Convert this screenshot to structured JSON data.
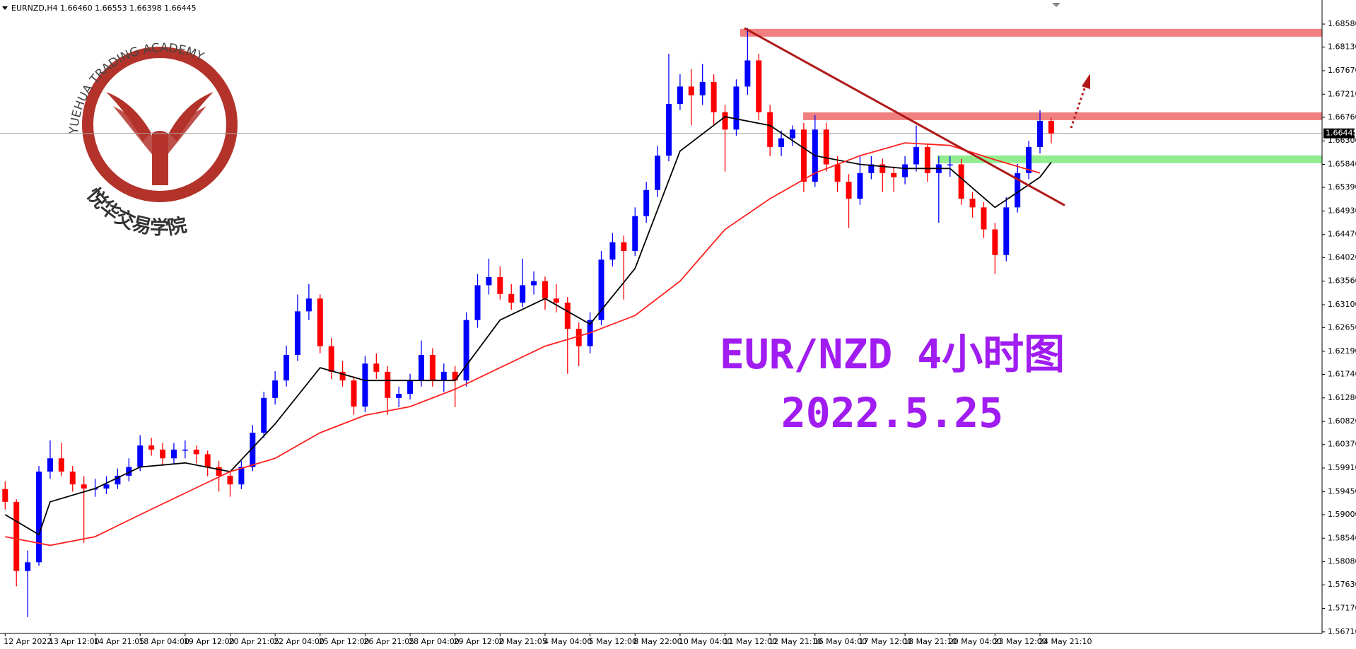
{
  "chart_data": {
    "type": "candlestick",
    "header": "EURNZD,H4  1.66460 1.66553 1.66398 1.66445",
    "title": "EUR/NZD 4小时图",
    "subtitle": "2022.5.25",
    "logo_text": "YUEHUA TRADING ACADEMY",
    "logo_name": "悦华交易学院",
    "up_color": "#0000ff",
    "down_color": "#ff0000",
    "ylim": [
      1.5668,
      1.6905
    ],
    "yticks": [
      {
        "value": 1.6858,
        "label": "1.68580"
      },
      {
        "value": 1.6813,
        "label": "1.68130"
      },
      {
        "value": 1.6767,
        "label": "1.67670"
      },
      {
        "value": 1.6721,
        "label": "1.67210"
      },
      {
        "value": 1.6676,
        "label": "1.66760"
      },
      {
        "value": 1.663,
        "label": "1.66300"
      },
      {
        "value": 1.6584,
        "label": "1.65840"
      },
      {
        "value": 1.6539,
        "label": "1.65390"
      },
      {
        "value": 1.6493,
        "label": "1.64930"
      },
      {
        "value": 1.6447,
        "label": "1.64470"
      },
      {
        "value": 1.6402,
        "label": "1.64020"
      },
      {
        "value": 1.6356,
        "label": "1.63560"
      },
      {
        "value": 1.631,
        "label": "1.63100"
      },
      {
        "value": 1.6265,
        "label": "1.62650"
      },
      {
        "value": 1.6219,
        "label": "1.62190"
      },
      {
        "value": 1.6174,
        "label": "1.61740"
      },
      {
        "value": 1.6128,
        "label": "1.61280"
      },
      {
        "value": 1.6082,
        "label": "1.60820"
      },
      {
        "value": 1.6037,
        "label": "1.60370"
      },
      {
        "value": 1.5991,
        "label": "1.59910"
      },
      {
        "value": 1.5945,
        "label": "1.59450"
      },
      {
        "value": 1.59,
        "label": "1.59000"
      },
      {
        "value": 1.5854,
        "label": "1.58540"
      },
      {
        "value": 1.5808,
        "label": "1.58080"
      },
      {
        "value": 1.5763,
        "label": "1.57630"
      },
      {
        "value": 1.5717,
        "label": "1.57170"
      },
      {
        "value": 1.5671,
        "label": "1.56710"
      }
    ],
    "last_price": 1.66445,
    "date_labels": [
      "12 Apr 2022",
      "13 Apr 12:00",
      "14 Apr 21:05",
      "18 Apr 04:00",
      "19 Apr 12:00",
      "20 Apr 21:05",
      "22 Apr 04:00",
      "25 Apr 12:00",
      "26 Apr 21:05",
      "28 Apr 04:00",
      "29 Apr 12:00",
      "2 May 21:05",
      "4 May 04:00",
      "5 May 12:00",
      "8 May 22:00",
      "10 May 04:00",
      "11 May 12:00",
      "12 May 21:10",
      "16 May 04:00",
      "17 May 12:00",
      "18 May 21:10",
      "20 May 04:00",
      "23 May 12:00",
      "24 May 21:10"
    ],
    "ohlc": [
      [
        1.595,
        1.5965,
        1.591,
        1.5925
      ],
      [
        1.5925,
        1.593,
        1.576,
        1.579
      ],
      [
        1.579,
        1.583,
        1.57,
        1.5807
      ],
      [
        1.5807,
        1.5995,
        1.58,
        1.5984
      ],
      [
        1.5984,
        1.6045,
        1.597,
        1.601
      ],
      [
        1.601,
        1.604,
        1.5975,
        1.5984
      ],
      [
        1.5984,
        1.5995,
        1.5945,
        1.5959
      ],
      [
        1.5959,
        1.5975,
        1.5845,
        1.5951
      ],
      [
        1.5951,
        1.597,
        1.5935,
        1.5951
      ],
      [
        1.5951,
        1.5975,
        1.594,
        1.5959
      ],
      [
        1.5959,
        1.599,
        1.595,
        1.5976
      ],
      [
        1.5976,
        1.601,
        1.5965,
        1.5993
      ],
      [
        1.5993,
        1.6055,
        1.5985,
        1.6035
      ],
      [
        1.6035,
        1.605,
        1.6015,
        1.6027
      ],
      [
        1.6027,
        1.604,
        1.5995,
        1.601
      ],
      [
        1.601,
        1.604,
        1.6,
        1.6027
      ],
      [
        1.6027,
        1.6045,
        1.601,
        1.6027
      ],
      [
        1.6027,
        1.6035,
        1.6,
        1.6018
      ],
      [
        1.6018,
        1.6025,
        1.5975,
        1.5993
      ],
      [
        1.5993,
        1.6005,
        1.5945,
        1.5976
      ],
      [
        1.5976,
        1.5985,
        1.5935,
        1.5959
      ],
      [
        1.5959,
        1.6005,
        1.595,
        1.5993
      ],
      [
        1.5993,
        1.6075,
        1.5985,
        1.606
      ],
      [
        1.606,
        1.614,
        1.605,
        1.6128
      ],
      [
        1.6128,
        1.618,
        1.6115,
        1.6162
      ],
      [
        1.6162,
        1.623,
        1.615,
        1.6212
      ],
      [
        1.6212,
        1.633,
        1.62,
        1.6297
      ],
      [
        1.6297,
        1.635,
        1.628,
        1.6322
      ],
      [
        1.6322,
        1.633,
        1.6215,
        1.6229
      ],
      [
        1.6229,
        1.6245,
        1.6165,
        1.6179
      ],
      [
        1.6179,
        1.62,
        1.615,
        1.6162
      ],
      [
        1.6162,
        1.617,
        1.6095,
        1.6111
      ],
      [
        1.6111,
        1.621,
        1.61,
        1.6195
      ],
      [
        1.6195,
        1.6215,
        1.6165,
        1.6179
      ],
      [
        1.6179,
        1.619,
        1.6095,
        1.6128
      ],
      [
        1.6128,
        1.615,
        1.611,
        1.6136
      ],
      [
        1.6136,
        1.6175,
        1.6125,
        1.6162
      ],
      [
        1.6162,
        1.624,
        1.615,
        1.6212
      ],
      [
        1.6212,
        1.6225,
        1.615,
        1.6162
      ],
      [
        1.6162,
        1.6195,
        1.614,
        1.6179
      ],
      [
        1.6179,
        1.619,
        1.611,
        1.6162
      ],
      [
        1.6162,
        1.6295,
        1.615,
        1.628
      ],
      [
        1.628,
        1.637,
        1.6265,
        1.6348
      ],
      [
        1.6348,
        1.64,
        1.633,
        1.6364
      ],
      [
        1.6364,
        1.6385,
        1.632,
        1.6331
      ],
      [
        1.6331,
        1.635,
        1.63,
        1.6314
      ],
      [
        1.6314,
        1.64,
        1.6305,
        1.6348
      ],
      [
        1.6348,
        1.6375,
        1.633,
        1.6356
      ],
      [
        1.6356,
        1.6365,
        1.63,
        1.6322
      ],
      [
        1.6322,
        1.635,
        1.6295,
        1.6314
      ],
      [
        1.6314,
        1.6325,
        1.6175,
        1.6263
      ],
      [
        1.6263,
        1.6275,
        1.619,
        1.6229
      ],
      [
        1.6229,
        1.6295,
        1.6215,
        1.628
      ],
      [
        1.628,
        1.6415,
        1.627,
        1.6398
      ],
      [
        1.6398,
        1.645,
        1.6385,
        1.6432
      ],
      [
        1.6432,
        1.6445,
        1.632,
        1.6415
      ],
      [
        1.6415,
        1.65,
        1.6405,
        1.6483
      ],
      [
        1.6483,
        1.655,
        1.647,
        1.6534
      ],
      [
        1.6534,
        1.662,
        1.652,
        1.6601
      ],
      [
        1.6601,
        1.68,
        1.659,
        1.6702
      ],
      [
        1.6702,
        1.676,
        1.669,
        1.6736
      ],
      [
        1.6736,
        1.677,
        1.666,
        1.6719
      ],
      [
        1.6719,
        1.678,
        1.67,
        1.6745
      ],
      [
        1.6745,
        1.676,
        1.666,
        1.6686
      ],
      [
        1.6686,
        1.67,
        1.657,
        1.6652
      ],
      [
        1.6652,
        1.675,
        1.664,
        1.6736
      ],
      [
        1.6736,
        1.685,
        1.672,
        1.6787
      ],
      [
        1.6787,
        1.68,
        1.667,
        1.6686
      ],
      [
        1.6686,
        1.67,
        1.66,
        1.6618
      ],
      [
        1.6618,
        1.665,
        1.66,
        1.6635
      ],
      [
        1.6635,
        1.666,
        1.662,
        1.6652
      ],
      [
        1.6652,
        1.6665,
        1.653,
        1.655
      ],
      [
        1.655,
        1.668,
        1.654,
        1.6652
      ],
      [
        1.6652,
        1.6665,
        1.657,
        1.6584
      ],
      [
        1.6584,
        1.66,
        1.653,
        1.655
      ],
      [
        1.655,
        1.6565,
        1.646,
        1.6517
      ],
      [
        1.6517,
        1.66,
        1.6505,
        1.6567
      ],
      [
        1.6567,
        1.66,
        1.6555,
        1.6584
      ],
      [
        1.6584,
        1.6595,
        1.653,
        1.6567
      ],
      [
        1.6567,
        1.658,
        1.653,
        1.6559
      ],
      [
        1.6559,
        1.66,
        1.6545,
        1.6584
      ],
      [
        1.6584,
        1.666,
        1.657,
        1.6618
      ],
      [
        1.6618,
        1.6625,
        1.655,
        1.6567
      ],
      [
        1.6567,
        1.66,
        1.647,
        1.6584
      ],
      [
        1.6584,
        1.66,
        1.656,
        1.6584
      ],
      [
        1.6584,
        1.6595,
        1.6505,
        1.6517
      ],
      [
        1.6517,
        1.653,
        1.648,
        1.65
      ],
      [
        1.65,
        1.651,
        1.644,
        1.6457
      ],
      [
        1.6457,
        1.647,
        1.637,
        1.6407
      ],
      [
        1.6407,
        1.652,
        1.6395,
        1.65
      ],
      [
        1.65,
        1.6585,
        1.649,
        1.6567
      ],
      [
        1.6567,
        1.663,
        1.6555,
        1.6618
      ],
      [
        1.6618,
        1.669,
        1.6605,
        1.6669
      ],
      [
        1.6669,
        1.6675,
        1.6625,
        1.66445
      ]
    ],
    "lines": [
      {
        "color": "#000000",
        "x": [
          0,
          3,
          4,
          8,
          12,
          16,
          20,
          24,
          28,
          32,
          36,
          40,
          44,
          48,
          52,
          56,
          60,
          64,
          68,
          72,
          76,
          80,
          84,
          88,
          92,
          93
        ],
        "values": [
          1.59,
          1.5861,
          1.5925,
          1.5951,
          1.5993,
          1.6001,
          1.5984,
          1.6077,
          1.6187,
          1.6162,
          1.6162,
          1.6162,
          1.628,
          1.6322,
          1.6272,
          1.6381,
          1.661,
          1.6677,
          1.666,
          1.6601,
          1.6584,
          1.6576,
          1.6576,
          1.65,
          1.6559,
          1.6588
        ]
      },
      {
        "color": "#ff2020",
        "x": [
          0,
          4,
          8,
          12,
          16,
          20,
          24,
          28,
          32,
          36,
          40,
          44,
          48,
          52,
          56,
          60,
          64,
          68,
          72,
          76,
          80,
          84,
          88,
          92
        ],
        "values": [
          1.5857,
          1.584,
          1.5857,
          1.59,
          1.5942,
          1.5984,
          1.601,
          1.606,
          1.6094,
          1.6111,
          1.6145,
          1.6187,
          1.6229,
          1.6255,
          1.6289,
          1.6356,
          1.6457,
          1.6517,
          1.6567,
          1.6601,
          1.6626,
          1.6621,
          1.6593,
          1.6567
        ]
      }
    ],
    "levels": [
      {
        "value": 1.6841,
        "color": "#f08080"
      },
      {
        "value": 1.6678,
        "color": "#f08080"
      },
      {
        "value": 1.6594,
        "color": "#90ee90"
      }
    ],
    "trendline": {
      "values": [
        1.685,
        1.6504
      ],
      "color": "#b01818"
    }
  }
}
